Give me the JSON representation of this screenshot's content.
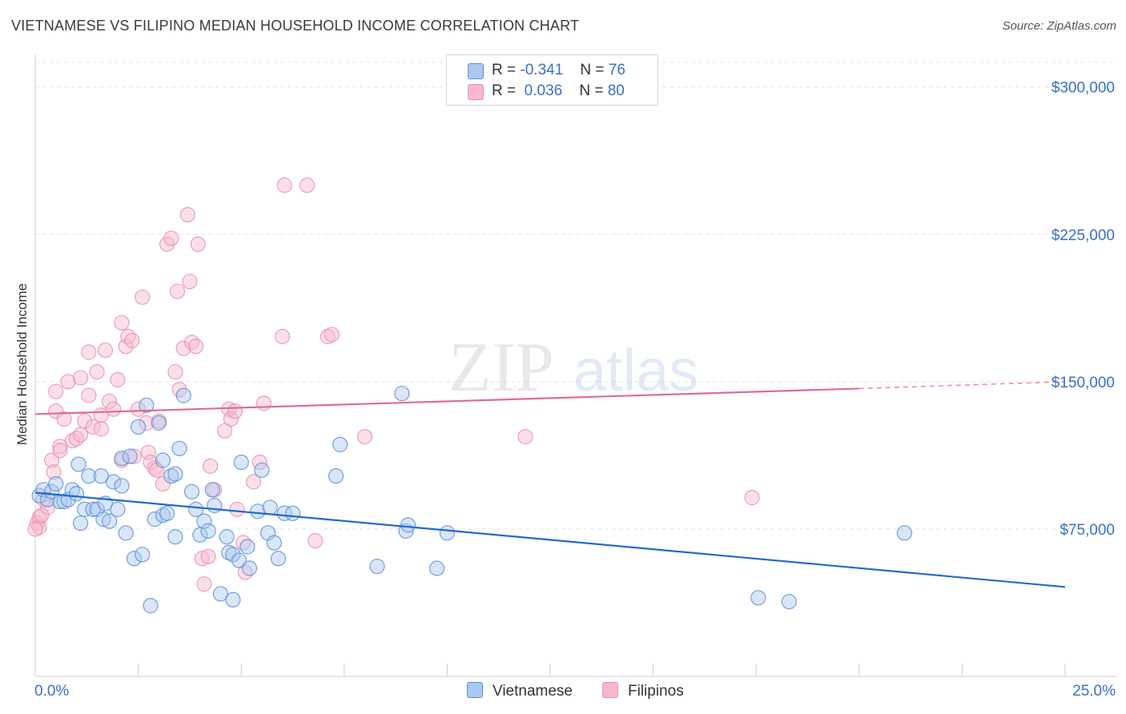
{
  "header": {
    "title": "VIETNAMESE VS FILIPINO MEDIAN HOUSEHOLD INCOME CORRELATION CHART",
    "source": "Source: ZipAtlas.com"
  },
  "watermark": {
    "part1": "ZIP",
    "part2": "atlas"
  },
  "legend": {
    "rows": [
      {
        "r_label": "R =",
        "r_value": "-0.341",
        "n_label": "N =",
        "n_value": "76",
        "swatch": "#aac8f0"
      },
      {
        "r_label": "R =",
        "r_value": "0.036",
        "n_label": "N =",
        "n_value": "80",
        "swatch": "#f6b8cc"
      }
    ]
  },
  "bottom_legend": {
    "items": [
      "Vietnamese",
      "Filipinos"
    ]
  },
  "colors": {
    "blue_fill": "#aac8f0",
    "blue_stroke": "#5b8fd6",
    "blue_line": "#2468d0",
    "pink_fill": "#f6b8cc",
    "pink_stroke": "#e691af",
    "pink_line": "#e06a95",
    "axis_label": "#3a6fc4"
  },
  "chart_data": {
    "type": "scatter",
    "title": "VIETNAMESE VS FILIPINO MEDIAN HOUSEHOLD INCOME CORRELATION CHART",
    "xlabel": "",
    "ylabel": "Median Household Income",
    "xlim": [
      0,
      0.25
    ],
    "ylim": [
      0,
      312500
    ],
    "x_tick_labels": [
      "0.0%",
      "25.0%"
    ],
    "y_ticks": [
      75000,
      150000,
      225000,
      300000
    ],
    "y_tick_labels": [
      "$75,000",
      "$150,000",
      "$225,000",
      "$300,000"
    ],
    "grid": true,
    "legend_position": "top-center",
    "series": [
      {
        "name": "Vietnamese",
        "R": -0.341,
        "N": 76,
        "trend": {
          "x0": 0.0,
          "y0": 93500,
          "x1": 0.25,
          "y1": 45500
        },
        "points": [
          [
            0.001,
            92000
          ],
          [
            0.002,
            95000
          ],
          [
            0.003,
            90000
          ],
          [
            0.004,
            94000
          ],
          [
            0.005,
            98000
          ],
          [
            0.006,
            89000
          ],
          [
            0.007,
            89000
          ],
          [
            0.008,
            90000
          ],
          [
            0.009,
            95000
          ],
          [
            0.01,
            93000
          ],
          [
            0.0105,
            108000
          ],
          [
            0.011,
            78000
          ],
          [
            0.012,
            85000
          ],
          [
            0.013,
            102000
          ],
          [
            0.014,
            85000
          ],
          [
            0.015,
            85000
          ],
          [
            0.016,
            102000
          ],
          [
            0.0165,
            80000
          ],
          [
            0.017,
            88000
          ],
          [
            0.018,
            79000
          ],
          [
            0.019,
            99000
          ],
          [
            0.02,
            85000
          ],
          [
            0.021,
            111000
          ],
          [
            0.021,
            97000
          ],
          [
            0.022,
            73000
          ],
          [
            0.023,
            112000
          ],
          [
            0.024,
            60000
          ],
          [
            0.025,
            127000
          ],
          [
            0.026,
            62000
          ],
          [
            0.027,
            138000
          ],
          [
            0.028,
            36000
          ],
          [
            0.029,
            80000
          ],
          [
            0.03,
            129000
          ],
          [
            0.031,
            110000
          ],
          [
            0.031,
            82000
          ],
          [
            0.032,
            83000
          ],
          [
            0.033,
            102000
          ],
          [
            0.034,
            71000
          ],
          [
            0.034,
            103000
          ],
          [
            0.035,
            116000
          ],
          [
            0.036,
            143000
          ],
          [
            0.038,
            94000
          ],
          [
            0.039,
            85000
          ],
          [
            0.04,
            72000
          ],
          [
            0.041,
            79000
          ],
          [
            0.042,
            74000
          ],
          [
            0.043,
            95000
          ],
          [
            0.0435,
            87000
          ],
          [
            0.045,
            42000
          ],
          [
            0.0465,
            71000
          ],
          [
            0.047,
            63000
          ],
          [
            0.048,
            62000
          ],
          [
            0.048,
            39000
          ],
          [
            0.0495,
            59000
          ],
          [
            0.05,
            109000
          ],
          [
            0.0515,
            66000
          ],
          [
            0.052,
            55000
          ],
          [
            0.054,
            84000
          ],
          [
            0.055,
            105000
          ],
          [
            0.0565,
            73000
          ],
          [
            0.057,
            86000
          ],
          [
            0.058,
            68000
          ],
          [
            0.059,
            60000
          ],
          [
            0.0605,
            83000
          ],
          [
            0.0625,
            83000
          ],
          [
            0.073,
            102000
          ],
          [
            0.074,
            118000
          ],
          [
            0.083,
            56000
          ],
          [
            0.089,
            144000
          ],
          [
            0.09,
            74000
          ],
          [
            0.0905,
            77000
          ],
          [
            0.0975,
            55000
          ],
          [
            0.1,
            73000
          ],
          [
            0.1755,
            40000
          ],
          [
            0.183,
            38000
          ],
          [
            0.211,
            73000
          ]
        ]
      },
      {
        "name": "Filipinos",
        "R": 0.036,
        "N": 80,
        "trend": {
          "x0": 0.0,
          "y0": 133500,
          "x1": 0.2,
          "y1": 146500,
          "dashed_to_x": 0.25,
          "dashed_to_y": 150000
        },
        "points": [
          [
            0.0005,
            78000
          ],
          [
            0.001,
            81000
          ],
          [
            0.002,
            90000
          ],
          [
            0.003,
            86000
          ],
          [
            0.004,
            110000
          ],
          [
            0.0045,
            104000
          ],
          [
            0.005,
            145000
          ],
          [
            0.005,
            135000
          ],
          [
            0.006,
            117000
          ],
          [
            0.006,
            115000
          ],
          [
            0.007,
            131000
          ],
          [
            0.008,
            150000
          ],
          [
            0.009,
            120000
          ],
          [
            0.01,
            121000
          ],
          [
            0.011,
            123000
          ],
          [
            0.011,
            152000
          ],
          [
            0.012,
            130000
          ],
          [
            0.013,
            165000
          ],
          [
            0.013,
            143000
          ],
          [
            0.014,
            127000
          ],
          [
            0.015,
            155000
          ],
          [
            0.016,
            133000
          ],
          [
            0.016,
            126000
          ],
          [
            0.017,
            166000
          ],
          [
            0.018,
            140000
          ],
          [
            0.019,
            136000
          ],
          [
            0.02,
            151000
          ],
          [
            0.021,
            180000
          ],
          [
            0.021,
            110000
          ],
          [
            0.022,
            168000
          ],
          [
            0.0225,
            173000
          ],
          [
            0.0235,
            171000
          ],
          [
            0.024,
            112000
          ],
          [
            0.025,
            136000
          ],
          [
            0.026,
            193000
          ],
          [
            0.027,
            129000
          ],
          [
            0.0275,
            114000
          ],
          [
            0.028,
            109000
          ],
          [
            0.029,
            106000
          ],
          [
            0.0295,
            105000
          ],
          [
            0.03,
            130000
          ],
          [
            0.031,
            98000
          ],
          [
            0.032,
            220000
          ],
          [
            0.033,
            223000
          ],
          [
            0.034,
            155000
          ],
          [
            0.0345,
            196000
          ],
          [
            0.035,
            146000
          ],
          [
            0.036,
            167000
          ],
          [
            0.037,
            235000
          ],
          [
            0.0375,
            201000
          ],
          [
            0.038,
            170000
          ],
          [
            0.039,
            168000
          ],
          [
            0.0395,
            220000
          ],
          [
            0.0405,
            60000
          ],
          [
            0.041,
            47000
          ],
          [
            0.042,
            61000
          ],
          [
            0.0425,
            107000
          ],
          [
            0.0435,
            95000
          ],
          [
            0.046,
            125000
          ],
          [
            0.047,
            136000
          ],
          [
            0.0475,
            131000
          ],
          [
            0.0485,
            135000
          ],
          [
            0.049,
            85000
          ],
          [
            0.0505,
            68000
          ],
          [
            0.051,
            53000
          ],
          [
            0.053,
            99000
          ],
          [
            0.0545,
            109000
          ],
          [
            0.0555,
            139000
          ],
          [
            0.06,
            173000
          ],
          [
            0.0605,
            250000
          ],
          [
            0.066,
            250000
          ],
          [
            0.068,
            69000
          ],
          [
            0.071,
            173000
          ],
          [
            0.072,
            174000
          ],
          [
            0.08,
            122000
          ],
          [
            0.119,
            122000
          ],
          [
            0.174,
            91000
          ],
          [
            0.001,
            76000
          ],
          [
            0.0,
            75000
          ],
          [
            0.0015,
            82000
          ]
        ]
      }
    ]
  }
}
